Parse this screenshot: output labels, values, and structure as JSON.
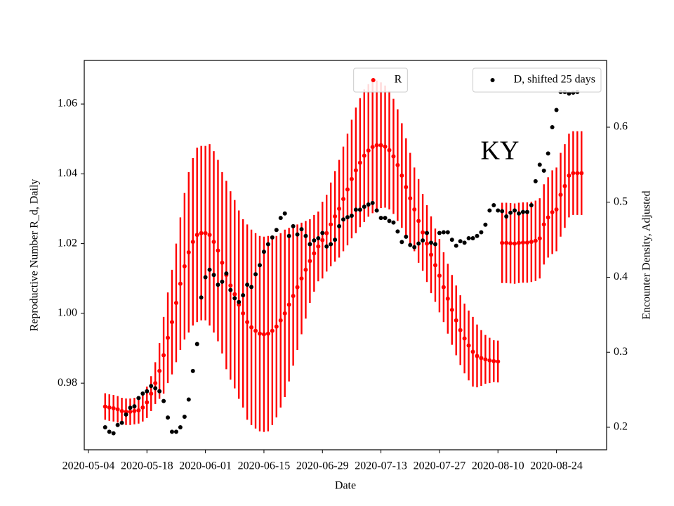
{
  "chart_data": {
    "type": "scatter",
    "xlabel": "Date",
    "ylabel": "Reproductive Number R_d, Daily",
    "y2label": "Encounter Density, Adjusted",
    "ylabel_color": "#ff0000",
    "annotation": "KY",
    "xlim": [
      "2020-05-03",
      "2020-09-05"
    ],
    "xticks": [
      "2020-05-04",
      "2020-05-18",
      "2020-06-01",
      "2020-06-15",
      "2020-06-29",
      "2020-07-13",
      "2020-07-27",
      "2020-08-10",
      "2020-08-24"
    ],
    "ylim": [
      0.9609,
      1.0725
    ],
    "yticks": [
      0.98,
      {
        "value": 1,
        "label": "1.00"
      },
      1.02,
      1.04,
      1.06
    ],
    "y2lim": [
      0.17,
      0.689
    ],
    "y2ticks": [
      0.2,
      0.3,
      0.4,
      0.5,
      0.6
    ],
    "x": [
      "2020-05-08",
      "2020-05-09",
      "2020-05-10",
      "2020-05-11",
      "2020-05-12",
      "2020-05-13",
      "2020-05-14",
      "2020-05-15",
      "2020-05-16",
      "2020-05-17",
      "2020-05-18",
      "2020-05-19",
      "2020-05-20",
      "2020-05-21",
      "2020-05-22",
      "2020-05-23",
      "2020-05-24",
      "2020-05-25",
      "2020-05-26",
      "2020-05-27",
      "2020-05-28",
      "2020-05-29",
      "2020-05-30",
      "2020-05-31",
      "2020-06-01",
      "2020-06-02",
      "2020-06-03",
      "2020-06-04",
      "2020-06-05",
      "2020-06-06",
      "2020-06-07",
      "2020-06-08",
      "2020-06-09",
      "2020-06-10",
      "2020-06-11",
      "2020-06-12",
      "2020-06-13",
      "2020-06-14",
      "2020-06-15",
      "2020-06-16",
      "2020-06-17",
      "2020-06-18",
      "2020-06-19",
      "2020-06-20",
      "2020-06-21",
      "2020-06-22",
      "2020-06-23",
      "2020-06-24",
      "2020-06-25",
      "2020-06-26",
      "2020-06-27",
      "2020-06-28",
      "2020-06-29",
      "2020-06-30",
      "2020-07-01",
      "2020-07-02",
      "2020-07-03",
      "2020-07-04",
      "2020-07-05",
      "2020-07-06",
      "2020-07-07",
      "2020-07-08",
      "2020-07-09",
      "2020-07-10",
      "2020-07-11",
      "2020-07-12",
      "2020-07-13",
      "2020-07-14",
      "2020-07-15",
      "2020-07-16",
      "2020-07-17",
      "2020-07-18",
      "2020-07-19",
      "2020-07-20",
      "2020-07-21",
      "2020-07-22",
      "2020-07-23",
      "2020-07-24",
      "2020-07-25",
      "2020-07-26",
      "2020-07-27",
      "2020-07-28",
      "2020-07-29",
      "2020-07-30",
      "2020-07-31",
      "2020-08-01",
      "2020-08-02",
      "2020-08-03",
      "2020-08-04",
      "2020-08-05",
      "2020-08-06",
      "2020-08-07",
      "2020-08-08",
      "2020-08-09",
      "2020-08-10",
      "2020-08-11",
      "2020-08-12",
      "2020-08-13",
      "2020-08-14",
      "2020-08-15",
      "2020-08-16",
      "2020-08-17",
      "2020-08-18",
      "2020-08-19",
      "2020-08-20",
      "2020-08-21",
      "2020-08-22",
      "2020-08-23",
      "2020-08-24",
      "2020-08-25",
      "2020-08-26",
      "2020-08-27",
      "2020-08-28",
      "2020-08-29",
      "2020-08-30"
    ],
    "series": [
      {
        "name": "R",
        "color": "#ff0000",
        "legend_loc": "upper center",
        "values": [
          0.9733,
          0.973,
          0.9728,
          0.9725,
          0.972,
          0.9718,
          0.9718,
          0.972,
          0.9722,
          0.973,
          0.9745,
          0.977,
          0.98,
          0.9835,
          0.988,
          0.993,
          0.9975,
          1.003,
          1.0085,
          1.0135,
          1.0175,
          1.0205,
          1.0225,
          1.023,
          1.023,
          1.0225,
          1.0205,
          1.018,
          1.0145,
          1.011,
          1.008,
          1.0055,
          1.0025,
          1.0,
          0.9975,
          0.996,
          0.995,
          0.9942,
          0.994,
          0.9942,
          0.995,
          0.9962,
          0.998,
          1.0,
          1.0025,
          1.005,
          1.0075,
          1.01,
          1.0125,
          1.015,
          1.0172,
          1.0192,
          1.021,
          1.023,
          1.0255,
          1.0278,
          1.03,
          1.0328,
          1.0355,
          1.0385,
          1.041,
          1.0432,
          1.0452,
          1.0467,
          1.0477,
          1.0482,
          1.0482,
          1.0478,
          1.0468,
          1.045,
          1.0425,
          1.0395,
          1.0362,
          1.033,
          1.0298,
          1.0265,
          1.0232,
          1.02,
          1.0168,
          1.0138,
          1.0108,
          1.0075,
          1.0042,
          1.001,
          0.998,
          0.9952,
          0.9928,
          0.9908,
          0.989,
          0.9878,
          0.9872,
          0.9868,
          0.9865,
          0.9863,
          0.9862,
          1.0202,
          1.0202,
          1.0201,
          1.02,
          1.0202,
          1.0203,
          1.0203,
          1.0205,
          1.0208,
          1.0215,
          1.0255,
          1.0275,
          1.029,
          1.0298,
          1.034,
          1.0365,
          1.0395,
          1.0402,
          1.0402,
          1.0402
        ],
        "errors": [
          0.0038,
          0.0038,
          0.0038,
          0.0038,
          0.0038,
          0.0038,
          0.0038,
          0.0038,
          0.0038,
          0.004,
          0.0045,
          0.005,
          0.006,
          0.008,
          0.011,
          0.013,
          0.015,
          0.017,
          0.019,
          0.021,
          0.023,
          0.024,
          0.025,
          0.025,
          0.025,
          0.026,
          0.026,
          0.026,
          0.026,
          0.027,
          0.027,
          0.027,
          0.027,
          0.027,
          0.028,
          0.028,
          0.028,
          0.028,
          0.028,
          0.028,
          0.027,
          0.026,
          0.025,
          0.024,
          0.022,
          0.02,
          0.018,
          0.016,
          0.014,
          0.012,
          0.011,
          0.01,
          0.011,
          0.011,
          0.012,
          0.013,
          0.014,
          0.015,
          0.016,
          0.017,
          0.018,
          0.0185,
          0.019,
          0.019,
          0.019,
          0.0185,
          0.018,
          0.0175,
          0.017,
          0.0165,
          0.016,
          0.015,
          0.014,
          0.013,
          0.012,
          0.012,
          0.011,
          0.011,
          0.011,
          0.0105,
          0.0105,
          0.01,
          0.01,
          0.01,
          0.01,
          0.01,
          0.01,
          0.01,
          0.01,
          0.009,
          0.008,
          0.007,
          0.0065,
          0.006,
          0.006,
          0.0115,
          0.0115,
          0.0115,
          0.0115,
          0.0115,
          0.0115,
          0.0115,
          0.0115,
          0.0115,
          0.0115,
          0.0115,
          0.0115,
          0.012,
          0.012,
          0.012,
          0.012,
          0.012,
          0.012,
          0.012,
          0.012
        ]
      },
      {
        "name": "D, shifted 25 days",
        "color": "#000000",
        "axis": "y2",
        "legend_loc": "upper right",
        "values": [
          0.2,
          0.194,
          0.192,
          0.203,
          0.206,
          0.217,
          0.226,
          0.228,
          0.239,
          0.245,
          0.248,
          0.255,
          0.252,
          0.248,
          0.235,
          0.213,
          0.194,
          0.194,
          0.2,
          0.214,
          0.237,
          0.275,
          0.311,
          0.373,
          0.4,
          0.41,
          0.403,
          0.39,
          0.394,
          0.405,
          0.383,
          0.372,
          0.367,
          0.376,
          0.39,
          0.387,
          0.404,
          0.416,
          0.434,
          0.444,
          0.453,
          0.463,
          0.479,
          0.485,
          0.455,
          0.468,
          0.457,
          0.464,
          0.455,
          0.444,
          0.449,
          0.452,
          0.459,
          0.441,
          0.444,
          0.45,
          0.468,
          0.477,
          0.48,
          0.482,
          0.49,
          0.49,
          0.494,
          0.497,
          0.499,
          0.489,
          0.479,
          0.479,
          0.475,
          0.473,
          0.461,
          0.447,
          0.454,
          0.443,
          0.44,
          0.445,
          0.449,
          0.459,
          0.446,
          0.444,
          0.459,
          0.46,
          0.46,
          0.45,
          0.442,
          0.448,
          0.446,
          0.452,
          0.452,
          0.455,
          0.46,
          0.47,
          0.489,
          0.496,
          0.489,
          0.488,
          0.481,
          0.486,
          0.489,
          0.485,
          0.487,
          0.487,
          0.496,
          0.528,
          0.55,
          0.542,
          0.565,
          0.6,
          0.623,
          0.647,
          0.647,
          0.645,
          0.646,
          0.647,
          null
        ]
      }
    ]
  }
}
